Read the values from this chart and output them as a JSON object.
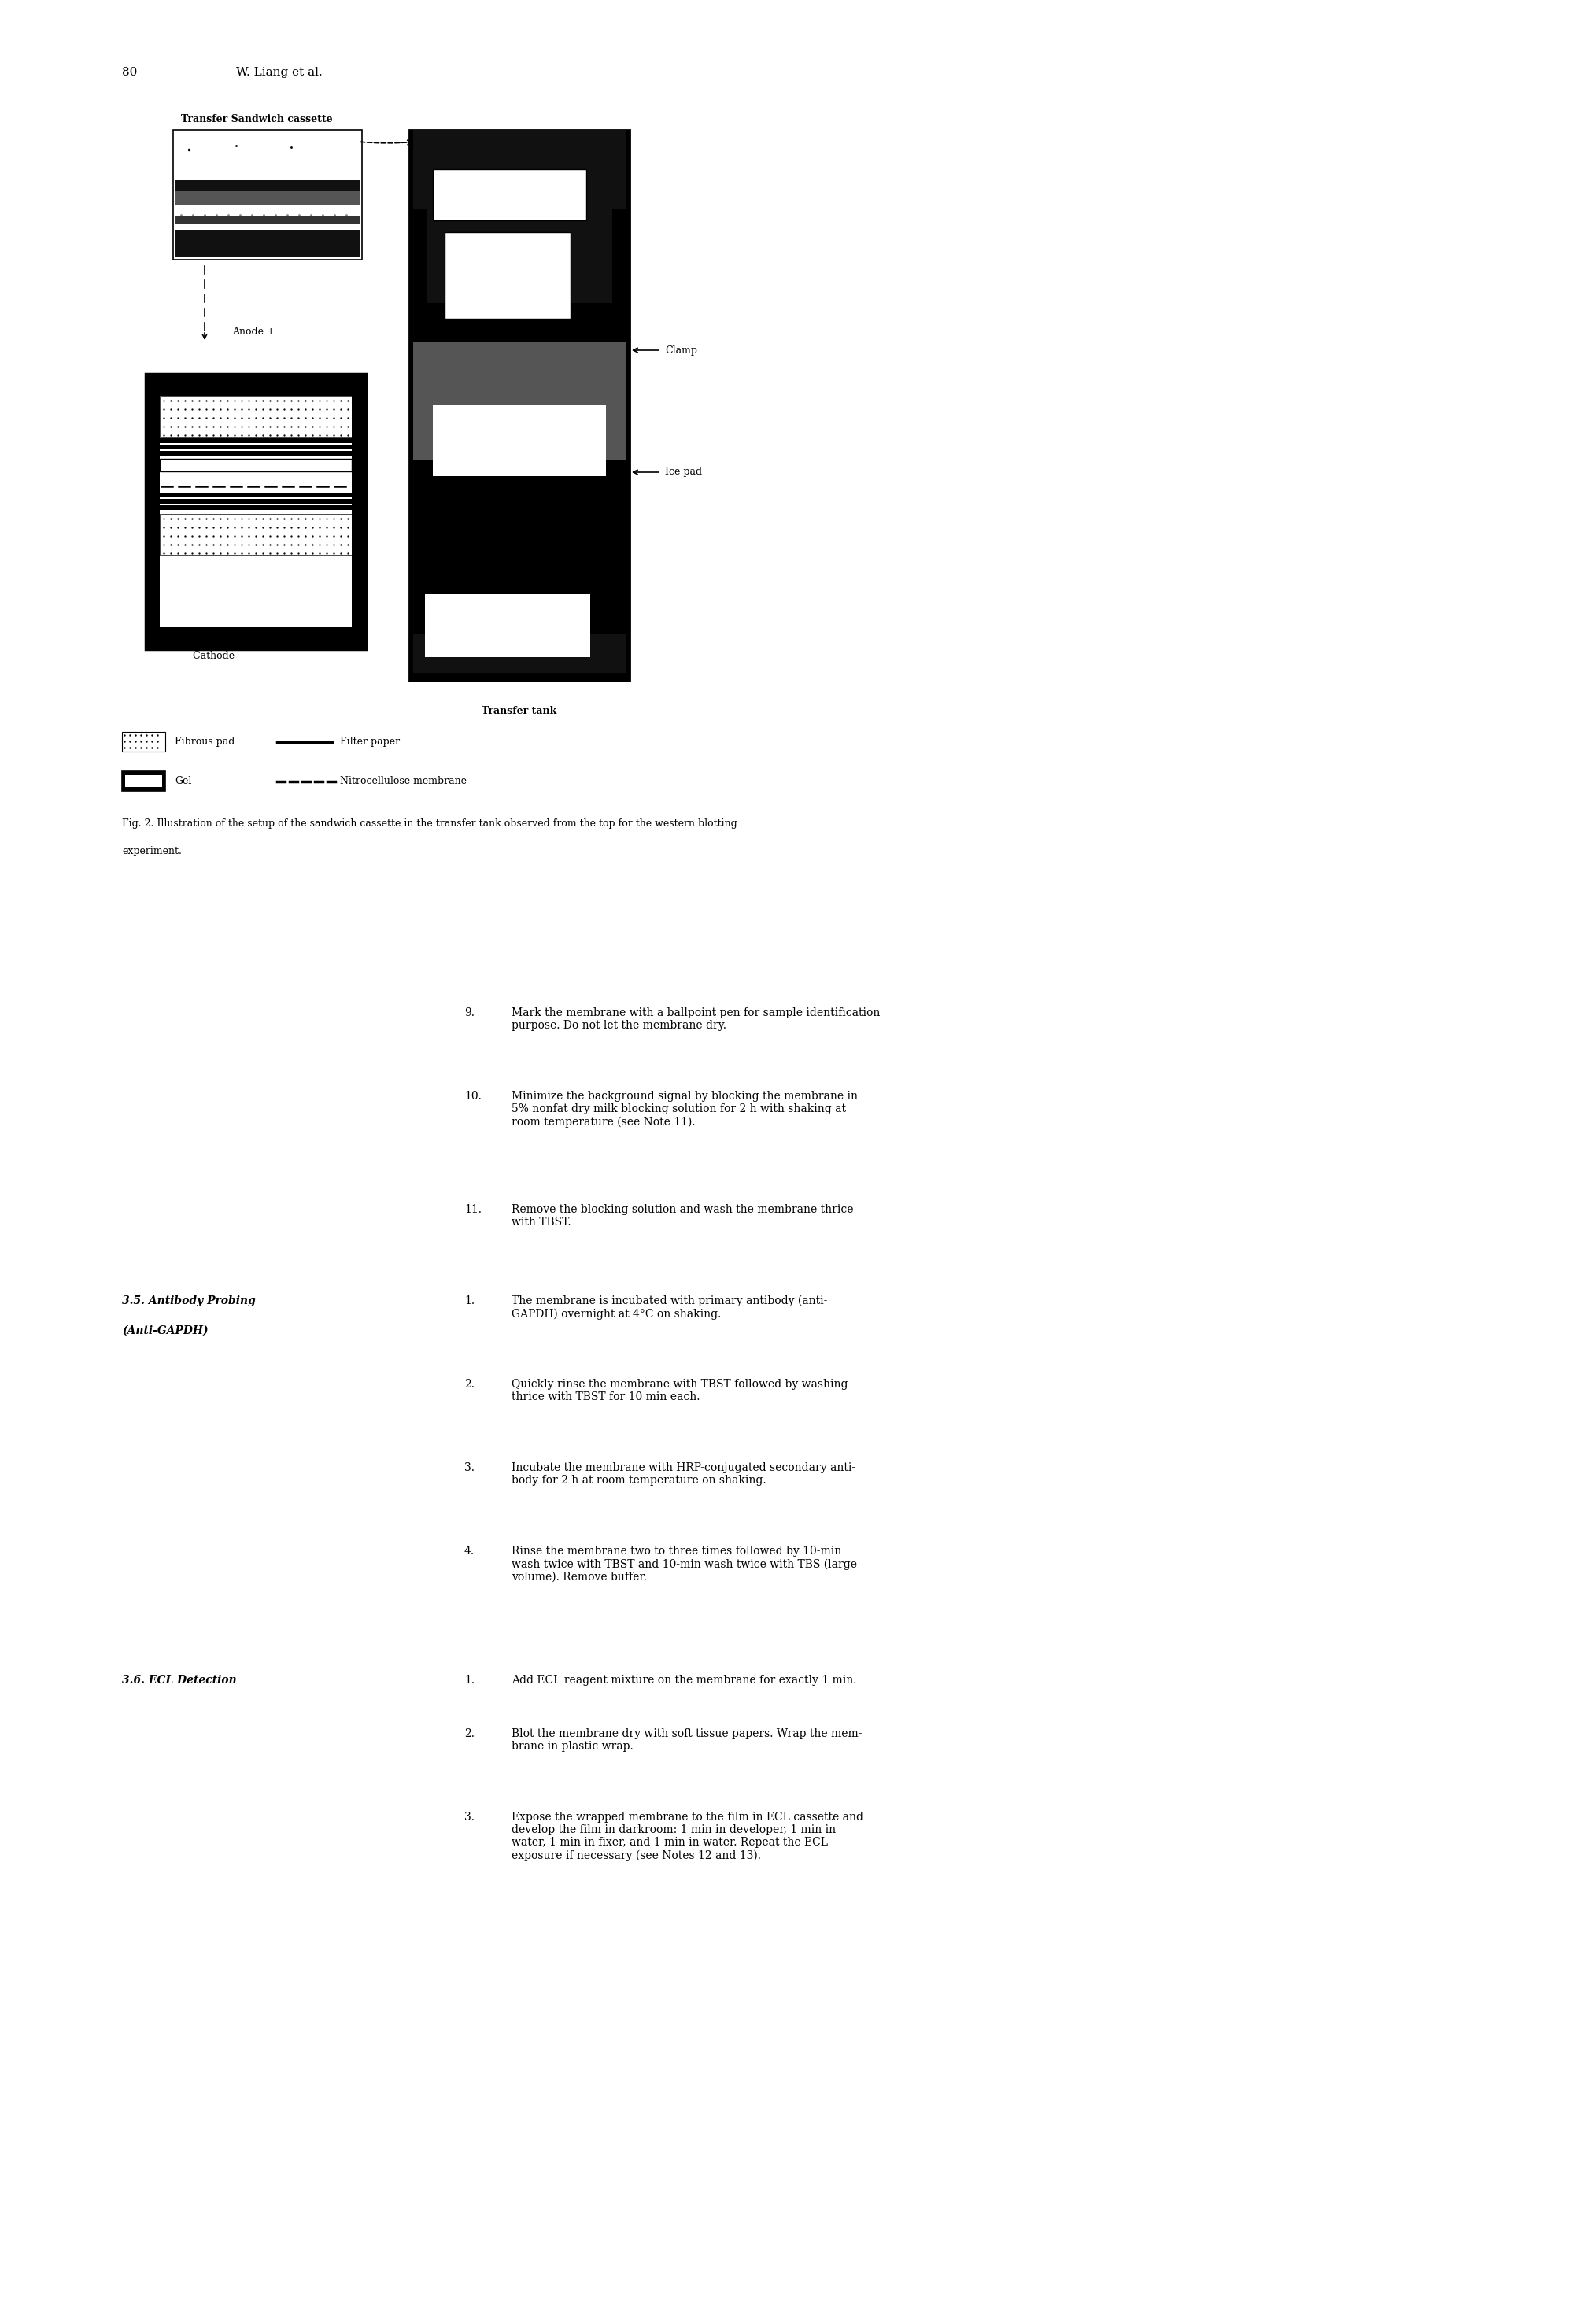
{
  "page_width": 20.09,
  "page_height": 29.53,
  "bg_color": "#ffffff",
  "header_number": "80",
  "header_author": "W. Liang et al.",
  "fig_caption_line1": "Fig. 2. Illustration of the setup of the sandwich cassette in the transfer tank observed from the top for the western blotting",
  "fig_caption_line2": "experiment.",
  "items_9_11": [
    [
      "9.",
      "Mark the membrane with a ballpoint pen for sample identification\npurpose. Do not let the membrane dry."
    ],
    [
      "10.",
      "Minimize the background signal by blocking the membrane in\n5% nonfat dry milk blocking solution for 2 h with shaking at\nroom temperature (see Note 11)."
    ],
    [
      "11.",
      "Remove the blocking solution and wash the membrane thrice\nwith TBST."
    ]
  ],
  "section_35_title1": "3.5. Antibody Probing",
  "section_35_title2": "(Anti-GAPDH)",
  "section_35_items": [
    [
      "1.",
      "The membrane is incubated with primary antibody (anti-\nGAPDH) overnight at 4°C on shaking."
    ],
    [
      "2.",
      "Quickly rinse the membrane with TBST followed by washing\nthrice with TBST for 10 min each."
    ],
    [
      "3.",
      "Incubate the membrane with HRP-conjugated secondary anti-\nbody for 2 h at room temperature on shaking."
    ],
    [
      "4.",
      "Rinse the membrane two to three times followed by 10-min\nwash twice with TBST and 10-min wash twice with TBS (large\nvolume). Remove buffer."
    ]
  ],
  "section_36_title": "3.6. ECL Detection",
  "section_36_items": [
    [
      "1.",
      "Add ECL reagent mixture on the membrane for exactly 1 min."
    ],
    [
      "2.",
      "Blot the membrane dry with soft tissue papers. Wrap the mem-\nbrane in plastic wrap."
    ],
    [
      "3.",
      "Expose the wrapped membrane to the film in ECL cassette and\ndevelop the film in darkroom: 1 min in developer, 1 min in\nwater, 1 min in fixer, and 1 min in water. Repeat the ECL\nexposure if necessary (see Notes 12 and 13)."
    ]
  ]
}
